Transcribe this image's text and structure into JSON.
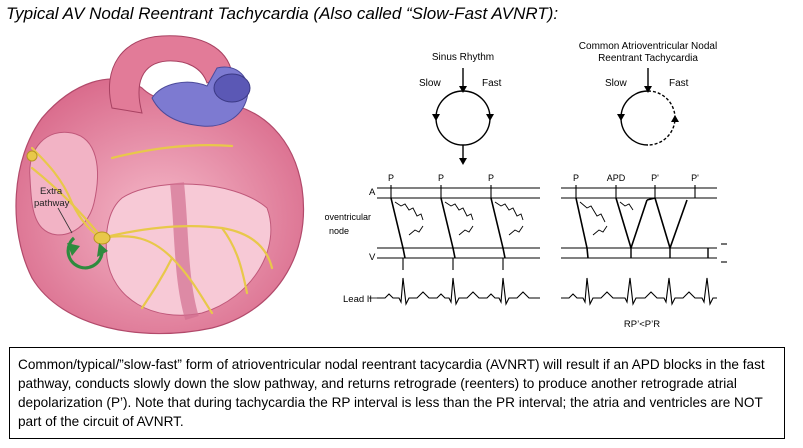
{
  "title": "Typical AV Nodal Reentrant Tachycardia (Also called “Slow-Fast AVNRT):",
  "heart": {
    "extra_pathway_label_line1": "Extra",
    "extra_pathway_label_line2": "pathway",
    "colors": {
      "myocardium": "#e58aa4",
      "inner": "#f7c9d6",
      "conduction": "#e8c84a",
      "arrow": "#2e8b3e"
    }
  },
  "diagram": {
    "sinus_title": "Sinus Rhythm",
    "avnrt_title_line1": "Common Atrioventricular Nodal",
    "avnrt_title_line2": "Reentrant Tachycardia",
    "slow_label": "Slow",
    "fast_label": "Fast",
    "row_a": "A",
    "row_av_line1": "Atrioventricular",
    "row_av_line2": "node",
    "row_v": "V",
    "lead_label": "Lead II",
    "p_label": "P",
    "apd_label": "APD",
    "p_prime_label": "P'",
    "rp_pr_label": "RP’<P’R"
  },
  "caption": "Common/typical/”slow-fast” form of atrioventricular nodal reentrant tacycardia (AVNRT) will result if an APD blocks in the fast pathway, conducts slowly down the slow pathway, and returns retrograde (reenters) to produce another retrograde atrial depolarization (P’).  Note that during tachycardia the RP interval is less than the PR interval; the atria and ventricles are NOT part of the circuit of AVNRT."
}
